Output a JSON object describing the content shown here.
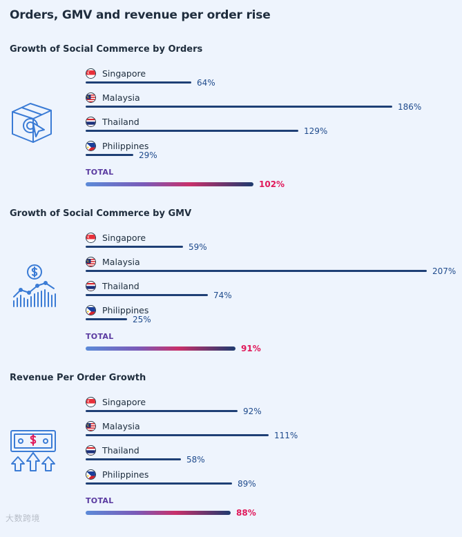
{
  "title": "Orders, GMV and revenue per order rise",
  "colors": {
    "bar": "#1e3f75",
    "pct": "#1e4a8c",
    "total_pct": "#e0185a",
    "icon": "#3a7bd5"
  },
  "chart_data": [
    {
      "type": "bar",
      "title": "Growth of Social Commerce by Orders",
      "icon": "box-cursor-icon",
      "unit": "%",
      "categories": [
        "Singapore",
        "Malaysia",
        "Thailand",
        "Philippines"
      ],
      "values": [
        64,
        186,
        129,
        29
      ],
      "labels": [
        "64%",
        "186%",
        "129%",
        "29%"
      ],
      "total_label": "TOTAL",
      "total_value": 102,
      "total_text": "102%"
    },
    {
      "type": "bar",
      "title": "Growth of Social Commerce by GMV",
      "icon": "dollar-growth-chart-icon",
      "unit": "%",
      "categories": [
        "Singapore",
        "Malaysia",
        "Thailand",
        "Philippines"
      ],
      "values": [
        59,
        207,
        74,
        25
      ],
      "labels": [
        "59%",
        "207%",
        "74%",
        "25%"
      ],
      "total_label": "TOTAL",
      "total_value": 91,
      "total_text": "91%"
    },
    {
      "type": "bar",
      "title": "Revenue Per Order Growth",
      "icon": "banknote-arrows-up-icon",
      "unit": "%",
      "categories": [
        "Singapore",
        "Malaysia",
        "Thailand",
        "Philippines"
      ],
      "values": [
        92,
        111,
        58,
        89
      ],
      "labels": [
        "92%",
        "111%",
        "58%",
        "89%"
      ],
      "total_label": "TOTAL",
      "total_value": 88,
      "total_text": "88%"
    }
  ],
  "watermark": "大数跨境"
}
